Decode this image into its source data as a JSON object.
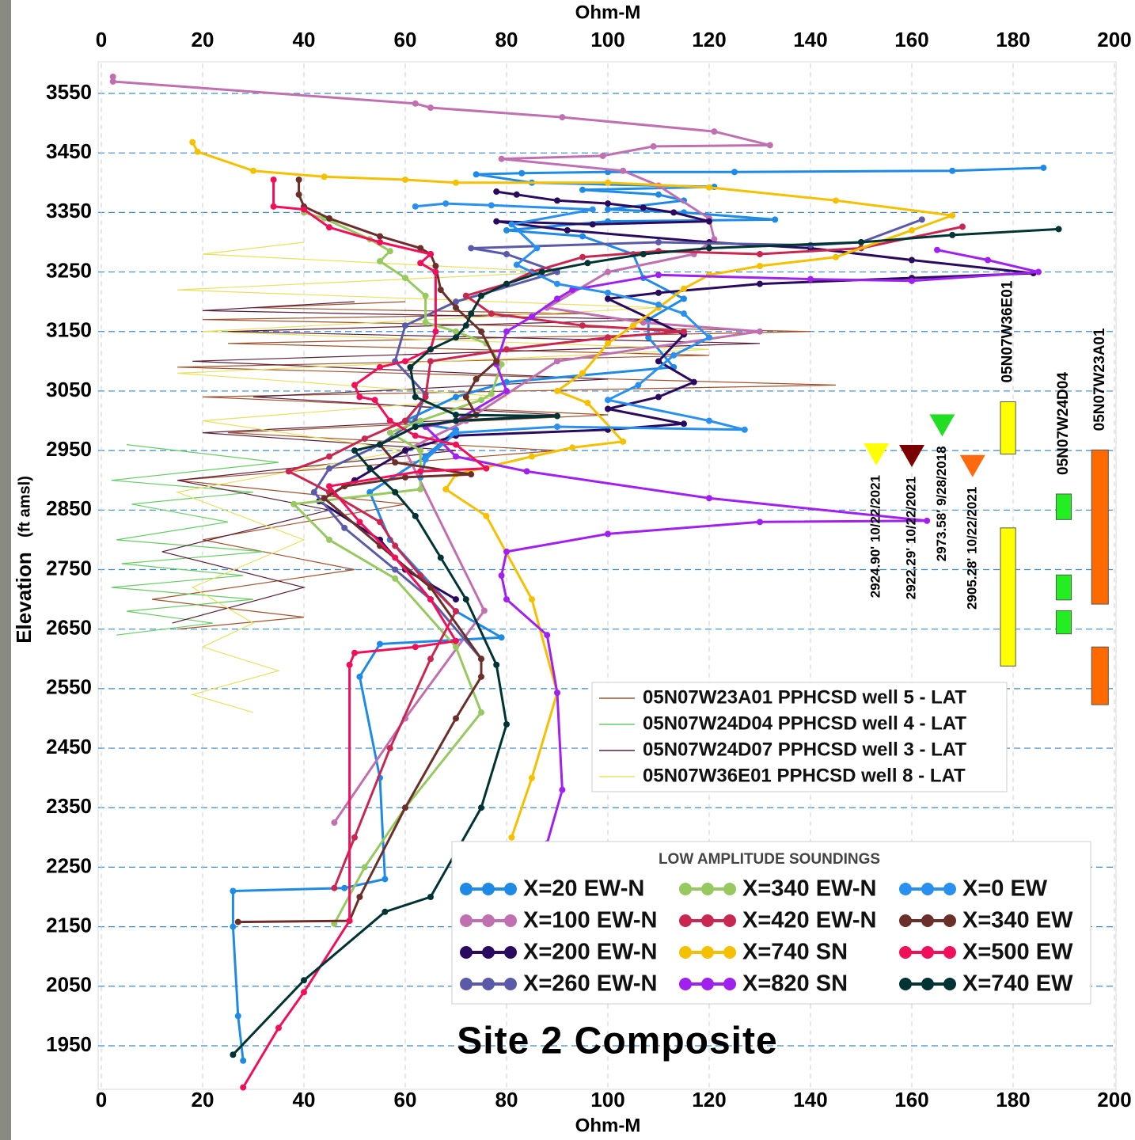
{
  "chart_data": {
    "type": "line",
    "title": "Site 2 Composite",
    "xlabel": "Ohm-M",
    "ylabel": "Elevation",
    "ylabel_unit": "(ft amsl)",
    "xlim": [
      0,
      200
    ],
    "ylim": [
      1880,
      3600
    ],
    "xticks": [
      0,
      20,
      40,
      60,
      80,
      100,
      120,
      140,
      160,
      180,
      200
    ],
    "yticks": [
      1950,
      2050,
      2150,
      2250,
      2350,
      2450,
      2550,
      2650,
      2750,
      2850,
      2950,
      3050,
      3150,
      3250,
      3350,
      3450,
      3550
    ],
    "grid": true,
    "legend_title": "LOW AMPLITUDE SOUNDINGS",
    "series": [
      {
        "name": "X=20 EW-N",
        "color": "#1e8ae6",
        "x": [
          186,
          168,
          125,
          100,
          83,
          74,
          85,
          121,
          95,
          110,
          115,
          100,
          115,
          133,
          100,
          80,
          95,
          105,
          107,
          115,
          108,
          108,
          113,
          80,
          70,
          60,
          70,
          64,
          53,
          57,
          70,
          79,
          55,
          51,
          55,
          56,
          48,
          26,
          26,
          27,
          28
        ],
        "y": [
          3425,
          3420,
          3418,
          3418,
          3416,
          3414,
          3400,
          3393,
          3388,
          3380,
          3370,
          3355,
          3350,
          3338,
          3335,
          3320,
          3310,
          3280,
          3240,
          3205,
          3170,
          3140,
          3090,
          3065,
          3040,
          3000,
          2985,
          2940,
          2880,
          2800,
          2680,
          2636,
          2625,
          2570,
          2400,
          2230,
          2215,
          2210,
          2150,
          2000,
          1925
        ]
      },
      {
        "name": "X=100 EW-N",
        "color": "#c070b0",
        "x": [
          2.3,
          2.3,
          62,
          65,
          91,
          121,
          132,
          109,
          99,
          79,
          103,
          110,
          120,
          121,
          117,
          100,
          88,
          107,
          130,
          90,
          72,
          60,
          75.6,
          60,
          46
        ],
        "y": [
          3578,
          3570,
          3533,
          3526,
          3510,
          3486,
          3463,
          3461,
          3445,
          3440,
          3420,
          3395,
          3340,
          3305,
          3280,
          3250,
          3190,
          3165,
          3150,
          3100,
          3000,
          2950,
          2681,
          2500,
          2325
        ]
      },
      {
        "name": "X=200 EW-N",
        "color": "#2a0a5e",
        "x": [
          78,
          82,
          90,
          100,
          107,
          113,
          120,
          97,
          78,
          92,
          120,
          140,
          160,
          184,
          160,
          130,
          110,
          100,
          115,
          110,
          117,
          110,
          100,
          115,
          100,
          70,
          60,
          50,
          43,
          55,
          60,
          70
        ],
        "y": [
          3385,
          3380,
          3370,
          3365,
          3358,
          3350,
          3335,
          3330,
          3335,
          3320,
          3300,
          3290,
          3270,
          3248,
          3240,
          3230,
          3215,
          3205,
          3145,
          3100,
          3065,
          3040,
          3020,
          2995,
          2985,
          2975,
          2950,
          2900,
          2865,
          2800,
          2750,
          2700
        ]
      },
      {
        "name": "X=260 EW-N",
        "color": "#5a5aa8",
        "x": [
          162,
          150,
          140,
          110,
          73,
          80,
          90,
          70,
          60,
          58,
          64,
          62,
          55,
          45,
          42,
          48,
          58,
          65,
          75
        ],
        "y": [
          3338,
          3300,
          3295,
          3300,
          3290,
          3280,
          3250,
          3200,
          3160,
          3100,
          3045,
          3000,
          2960,
          2920,
          2880,
          2820,
          2750,
          2700,
          2600
        ]
      },
      {
        "name": "X=340 EW-N",
        "color": "#98c860",
        "x": [
          40,
          44,
          53,
          57,
          55,
          60,
          64,
          64,
          70,
          76,
          79,
          77,
          75,
          63,
          57,
          63,
          63,
          38,
          45,
          58,
          70,
          75,
          60,
          52,
          46
        ],
        "y": [
          3350,
          3340,
          3305,
          3285,
          3268,
          3240,
          3210,
          3165,
          3150,
          3130,
          3095,
          3045,
          3035,
          3000,
          2980,
          2950,
          2885,
          2860,
          2800,
          2735,
          2620,
          2510,
          2350,
          2250,
          2155
        ]
      },
      {
        "name": "X=420 EW-N",
        "color": "#c82850",
        "x": [
          170,
          150,
          130,
          110,
          95,
          85,
          80,
          72,
          77,
          95,
          115,
          100,
          80,
          65,
          64,
          60,
          52,
          45,
          37,
          45,
          55,
          58,
          63,
          70,
          65,
          57,
          50,
          46
        ],
        "y": [
          3326,
          3290,
          3280,
          3285,
          3275,
          3250,
          3230,
          3210,
          3180,
          3160,
          3150,
          3140,
          3120,
          3100,
          3040,
          3000,
          2970,
          2940,
          2915,
          2880,
          2830,
          2790,
          2740,
          2680,
          2600,
          2450,
          2300,
          2215
        ]
      },
      {
        "name": "X=740 SN",
        "color": "#f5c000",
        "x": [
          18,
          19,
          30,
          44,
          60,
          70,
          100,
          120,
          145,
          168,
          160,
          145,
          130,
          120,
          115,
          110,
          105,
          100,
          95,
          90,
          96,
          103,
          93,
          85,
          70,
          68,
          76,
          85,
          90,
          85,
          81
        ],
        "y": [
          3468,
          3452,
          3420,
          3410,
          3405,
          3400,
          3400,
          3392,
          3370,
          3345,
          3320,
          3275,
          3260,
          3245,
          3222,
          3190,
          3160,
          3130,
          3080,
          3050,
          3030,
          2965,
          2955,
          2940,
          2910,
          2885,
          2840,
          2700,
          2543,
          2400,
          2300
        ]
      },
      {
        "name": "X=820 SN",
        "color": "#a020f0",
        "x": [
          165,
          175,
          185,
          160,
          140,
          110,
          93,
          90,
          85,
          80,
          78,
          80,
          70,
          64,
          70,
          84,
          120,
          163,
          130,
          100,
          80,
          79,
          80,
          88,
          90,
          91,
          88
        ],
        "y": [
          3287,
          3270,
          3250,
          3235,
          3238,
          3245,
          3220,
          3205,
          3175,
          3150,
          3095,
          3050,
          3000,
          2990,
          2940,
          2915,
          2870,
          2832,
          2830,
          2810,
          2780,
          2740,
          2700,
          2640,
          2543,
          2380,
          2290
        ]
      },
      {
        "name": "X=0 EW",
        "color": "#2a90f0",
        "x": [
          62,
          68,
          77,
          97,
          81,
          86,
          82,
          90,
          100,
          110,
          115,
          120,
          113,
          106,
          100,
          120,
          127,
          90,
          70,
          64,
          63
        ],
        "y": [
          3360,
          3365,
          3362,
          3355,
          3330,
          3290,
          3262,
          3230,
          3215,
          3195,
          3180,
          3140,
          3110,
          3060,
          3035,
          3000,
          2985,
          2990,
          2980,
          2935,
          2905
        ]
      },
      {
        "name": "X=340 EW",
        "color": "#6b2f2a",
        "x": [
          39,
          39,
          40,
          45,
          55,
          63,
          65,
          66,
          67,
          70,
          75,
          78,
          74,
          72,
          74,
          70,
          62,
          55,
          58,
          73,
          60,
          48,
          44,
          55,
          65,
          75,
          75,
          70,
          60,
          51,
          49,
          27
        ],
        "y": [
          3405,
          3380,
          3360,
          3340,
          3310,
          3290,
          3280,
          3260,
          3220,
          3190,
          3150,
          3100,
          3070,
          3040,
          3010,
          3000,
          2990,
          2960,
          2930,
          2910,
          2905,
          2890,
          2870,
          2790,
          2720,
          2600,
          2570,
          2500,
          2350,
          2200,
          2160,
          2158
        ]
      },
      {
        "name": "X=500 EW",
        "color": "#f0105a",
        "x": [
          34,
          34,
          40,
          45,
          55,
          65,
          63,
          66,
          66,
          65,
          60,
          55,
          50,
          51,
          54,
          57,
          62,
          70,
          76,
          63,
          45,
          51,
          58,
          65,
          70,
          62,
          50,
          49,
          49,
          40,
          35,
          28
        ],
        "y": [
          3405,
          3360,
          3355,
          3325,
          3300,
          3280,
          3265,
          3250,
          3150,
          3120,
          3100,
          3090,
          3060,
          3040,
          3035,
          3000,
          2975,
          2960,
          2920,
          2915,
          2890,
          2830,
          2770,
          2700,
          2630,
          2620,
          2610,
          2590,
          2160,
          2040,
          1980,
          1880
        ]
      },
      {
        "name": "X=740 EW",
        "color": "#003333",
        "x": [
          189,
          168,
          150,
          120,
          107,
          96,
          87,
          80,
          75,
          73,
          72,
          70,
          65,
          61,
          62,
          70,
          90,
          70,
          62,
          55,
          50,
          53,
          58,
          62,
          67,
          72,
          78,
          80,
          75,
          65,
          56,
          40,
          26
        ],
        "y": [
          3322,
          3312,
          3300,
          3290,
          3280,
          3265,
          3250,
          3230,
          3210,
          3180,
          3160,
          3140,
          3120,
          3090,
          3040,
          3010,
          3008,
          3000,
          2990,
          2960,
          2950,
          2920,
          2880,
          2840,
          2770,
          2700,
          2590,
          2490,
          2350,
          2200,
          2175,
          2060,
          1935
        ]
      }
    ],
    "well_logs": [
      {
        "name": "05N07W23A01 PPHCSD well 5 - LAT",
        "color": "#a0522d",
        "x": [
          60,
          30,
          95,
          20,
          140,
          25,
          120,
          15,
          145,
          20,
          100,
          25,
          90,
          15,
          60,
          20,
          50,
          10,
          40,
          15
        ],
        "y": [
          3200,
          3190,
          3180,
          3170,
          3150,
          3130,
          3110,
          3090,
          3060,
          3040,
          3010,
          2980,
          2950,
          2900,
          2860,
          2800,
          2750,
          2700,
          2670,
          2650
        ]
      },
      {
        "name": "05N07W24D04 PPHCSD well 4 - LAT",
        "color": "#66cc66",
        "x": [
          5,
          35,
          2,
          30,
          6,
          25,
          3,
          32,
          4,
          28,
          2,
          30,
          5,
          22,
          3
        ],
        "y": [
          2960,
          2930,
          2900,
          2880,
          2860,
          2830,
          2800,
          2780,
          2760,
          2740,
          2720,
          2700,
          2680,
          2660,
          2640
        ]
      },
      {
        "name": "05N07W24D07 PPHCSD well 3 - LAT",
        "color": "#5a1e3a",
        "x": [
          50,
          20,
          110,
          25,
          130,
          18,
          100,
          30,
          90,
          20,
          70,
          15,
          45,
          12,
          40,
          14
        ],
        "y": [
          3200,
          3185,
          3170,
          3150,
          3130,
          3100,
          3070,
          3040,
          3010,
          2980,
          2950,
          2900,
          2850,
          2780,
          2720,
          2660
        ]
      },
      {
        "name": "05N07W36E01 PPHCSD well 8 - LAT",
        "color": "#e8e060",
        "x": [
          40,
          20,
          90,
          15,
          110,
          20,
          120,
          15,
          80,
          20,
          60,
          15,
          40,
          18,
          30,
          20,
          35,
          18,
          30
        ],
        "y": [
          3300,
          3280,
          3250,
          3220,
          3190,
          3150,
          3120,
          3080,
          3040,
          3000,
          2950,
          2880,
          2800,
          2720,
          2660,
          2620,
          2580,
          2540,
          2510
        ]
      }
    ],
    "water_levels": [
      {
        "label": "2924.90' 10/22/2021",
        "x": 153,
        "y": 2924.9,
        "color": "#ffff00"
      },
      {
        "label": "2922.29' 10/22/2021",
        "x": 160,
        "y": 2922.29,
        "color": "#7a0000"
      },
      {
        "label": "2973.58' 9/28/2018",
        "x": 166,
        "y": 2973.58,
        "color": "#22dd22"
      },
      {
        "label": "2905.28' 10/22/2021",
        "x": 172,
        "y": 2905.28,
        "color": "#ff6a10"
      }
    ],
    "screens": [
      {
        "name": "05N07W36E01",
        "color": "#ffff00",
        "x": [
          177.5,
          180.5
        ],
        "intervals": [
          [
            3032,
            2944
          ],
          [
            2820,
            2588
          ]
        ]
      },
      {
        "name": "05N07W24D04",
        "color": "#22ee22",
        "x": [
          188.5,
          191.5
        ],
        "intervals": [
          [
            2877,
            2834
          ],
          [
            2741,
            2699
          ],
          [
            2681,
            2642
          ]
        ]
      },
      {
        "name": "05N07W23A01",
        "color": "#ff6a00",
        "x": [
          195.5,
          198.8
        ],
        "intervals": [
          [
            2951,
            2692
          ],
          [
            2620,
            2523
          ]
        ]
      }
    ]
  }
}
